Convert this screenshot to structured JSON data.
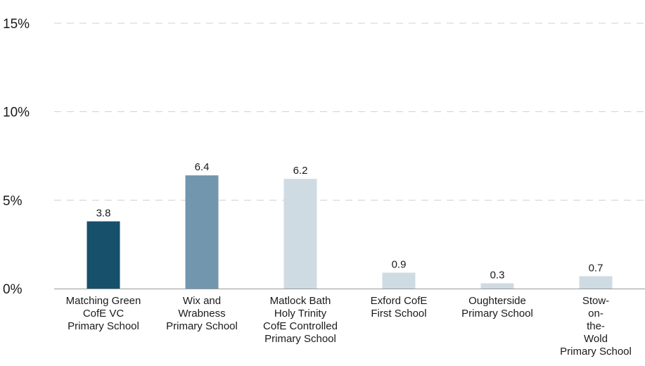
{
  "chart_data": {
    "type": "bar",
    "categories": [
      "Matching Green CofE VC Primary School",
      "Wix and Wrabness Primary School",
      "Matlock Bath Holy Trinity CofE Controlled Primary School",
      "Exford CofE First School",
      "Oughterside Primary School",
      "Stow-on-the-Wold Primary School"
    ],
    "category_lines": [
      [
        "Matching Green",
        "CofE VC",
        "Primary School"
      ],
      [
        "Wix and",
        "Wrabness",
        "Primary School"
      ],
      [
        "Matlock Bath",
        "Holy Trinity",
        "CofE Controlled",
        "Primary School"
      ],
      [
        "Exford CofE",
        "First School"
      ],
      [
        "Oughterside",
        "Primary School"
      ],
      [
        "Stow-",
        "on-",
        "the-",
        "Wold",
        "Primary School"
      ]
    ],
    "values": [
      3.8,
      6.4,
      6.2,
      0.9,
      0.3,
      0.7
    ],
    "value_labels": [
      "3.8",
      "6.4",
      "6.2",
      "0.9",
      "0.3",
      "0.7"
    ],
    "bar_colors": [
      "#16506b",
      "#7196ae",
      "#cfdbe3",
      "#cfdbe3",
      "#cfdbe3",
      "#cfdbe3"
    ],
    "ylim": [
      0,
      15
    ],
    "yticks": [
      0,
      5,
      10,
      15
    ],
    "ytick_labels": [
      "0%",
      "5%",
      "10%",
      "15%"
    ],
    "grid": true,
    "legend": "none"
  }
}
